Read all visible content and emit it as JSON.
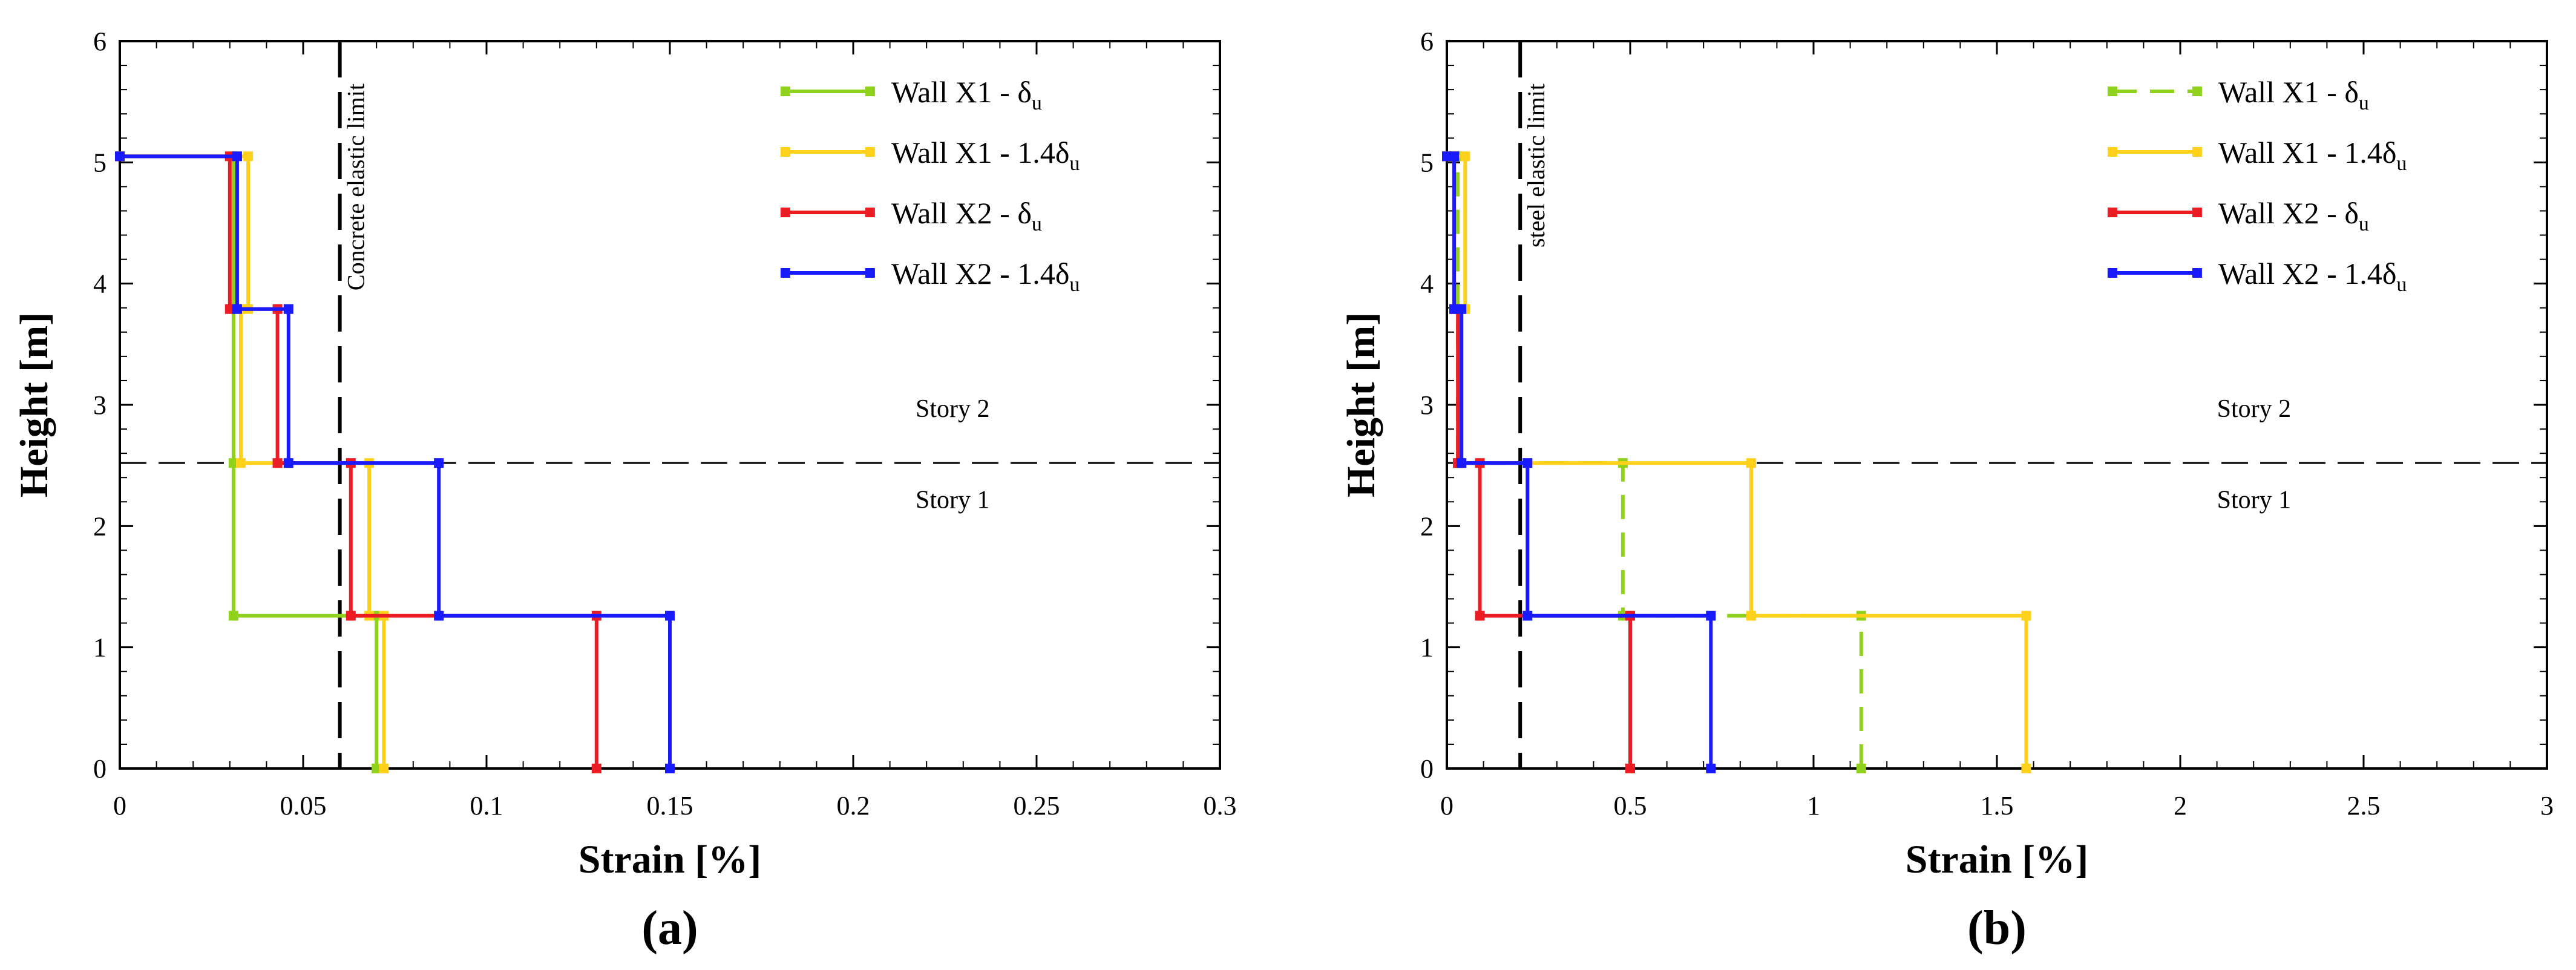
{
  "chart_data": [
    {
      "type": "line",
      "panel_label": "(a)",
      "xlabel": "Strain [%]",
      "ylabel": "Height [m]",
      "xlim": [
        0,
        0.3
      ],
      "ylim": [
        0,
        6
      ],
      "xticks": [
        0,
        0.05,
        0.1,
        0.15,
        0.2,
        0.25,
        0.3
      ],
      "xtick_labels": [
        "0",
        "0.05",
        "0.1",
        "0.15",
        "0.2",
        "0.25",
        "0.3"
      ],
      "yticks": [
        0,
        1,
        2,
        3,
        4,
        5,
        6
      ],
      "ytick_labels": [
        "0",
        "1",
        "2",
        "3",
        "4",
        "5",
        "6"
      ],
      "grid": false,
      "legend_position": "top-right",
      "story_line_y": 2.52,
      "story_labels": [
        {
          "text": "Story 2",
          "x": 0.217,
          "y": 2.9
        },
        {
          "text": "Story 1",
          "x": 0.217,
          "y": 2.15
        }
      ],
      "limit": {
        "label": "Concrete elastic limit",
        "x": 0.06
      },
      "series": [
        {
          "name": "Wall X1 - ",
          "suffix": "δ",
          "sub": "u",
          "color": "#8fd11b",
          "dashed": false,
          "x": [
            0.07,
            0.07,
            0.031,
            0.031,
            0.031,
            0.031,
            0
          ],
          "y": [
            0,
            1.26,
            1.26,
            2.52,
            3.79,
            5.05,
            5.05
          ]
        },
        {
          "name": "Wall X1 - 1.4",
          "suffix": "δ",
          "sub": "u",
          "color": "#ffd11a",
          "dashed": false,
          "x": [
            0.072,
            0.072,
            0.068,
            0.068,
            0.033,
            0.033,
            0.035,
            0.035,
            0
          ],
          "y": [
            0,
            1.26,
            1.26,
            2.52,
            2.52,
            3.79,
            3.79,
            5.05,
            5.05
          ]
        },
        {
          "name": "Wall X2 - ",
          "suffix": "δ",
          "sub": "u",
          "color": "#ec1c24",
          "dashed": false,
          "x": [
            0.13,
            0.13,
            0.063,
            0.063,
            0.043,
            0.043,
            0.03,
            0.03,
            0
          ],
          "y": [
            0,
            1.26,
            1.26,
            2.52,
            2.52,
            3.79,
            3.79,
            5.05,
            5.05
          ]
        },
        {
          "name": "Wall X2 - 1.4",
          "suffix": "δ",
          "sub": "u",
          "color": "#1a1aff",
          "dashed": false,
          "x": [
            0.15,
            0.15,
            0.087,
            0.087,
            0.046,
            0.046,
            0.032,
            0.032,
            0
          ],
          "y": [
            0,
            1.26,
            1.26,
            2.52,
            2.52,
            3.79,
            3.79,
            5.05,
            5.05
          ]
        }
      ]
    },
    {
      "type": "line",
      "panel_label": "(b)",
      "xlabel": "Strain [%]",
      "ylabel": "Height [m]",
      "xlim": [
        0,
        3
      ],
      "ylim": [
        0,
        6
      ],
      "xticks": [
        0,
        0.5,
        1,
        1.5,
        2,
        2.5,
        3
      ],
      "xtick_labels": [
        "0",
        "0.5",
        "1",
        "1.5",
        "2",
        "2.5",
        "3"
      ],
      "yticks": [
        0,
        1,
        2,
        3,
        4,
        5,
        6
      ],
      "ytick_labels": [
        "0",
        "1",
        "2",
        "3",
        "4",
        "5",
        "6"
      ],
      "grid": false,
      "legend_position": "top-right",
      "story_line_y": 2.52,
      "story_labels": [
        {
          "text": "Story 2",
          "x": 2.1,
          "y": 2.9
        },
        {
          "text": "Story 1",
          "x": 2.1,
          "y": 2.15
        }
      ],
      "limit": {
        "label": "steel elastic limit",
        "x": 0.2
      },
      "series": [
        {
          "name": "Wall X1 - ",
          "suffix": "δ",
          "sub": "u",
          "color": "#8fd11b",
          "dashed": true,
          "x": [
            1.13,
            1.13,
            0.48,
            0.48,
            0.03,
            0.03,
            0.03,
            0.03,
            0
          ],
          "y": [
            0,
            1.26,
            1.26,
            2.52,
            2.52,
            3.79,
            3.79,
            5.05,
            5.05
          ]
        },
        {
          "name": "Wall X1 - 1.4",
          "suffix": "δ",
          "sub": "u",
          "color": "#ffd11a",
          "dashed": false,
          "x": [
            1.58,
            1.58,
            0.83,
            0.83,
            0.04,
            0.04,
            0.05,
            0.05,
            0
          ],
          "y": [
            0,
            1.26,
            1.26,
            2.52,
            2.52,
            3.79,
            3.79,
            5.05,
            5.05
          ]
        },
        {
          "name": "Wall X2 - ",
          "suffix": "δ",
          "sub": "u",
          "color": "#ec1c24",
          "dashed": false,
          "x": [
            0.5,
            0.5,
            0.09,
            0.09,
            0.03,
            0.03,
            0.02,
            0.02,
            0
          ],
          "y": [
            0,
            1.26,
            1.26,
            2.52,
            2.52,
            3.79,
            3.79,
            5.05,
            5.05
          ]
        },
        {
          "name": "Wall X2 - 1.4",
          "suffix": "δ",
          "sub": "u",
          "color": "#1a1aff",
          "dashed": false,
          "x": [
            0.72,
            0.72,
            0.22,
            0.22,
            0.04,
            0.04,
            0.02,
            0.02,
            0
          ],
          "y": [
            0,
            1.26,
            1.26,
            2.52,
            2.52,
            3.79,
            3.79,
            5.05,
            5.05
          ]
        }
      ]
    }
  ]
}
